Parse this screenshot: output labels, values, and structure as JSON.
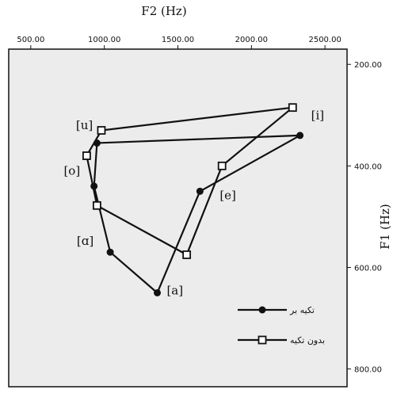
{
  "chart_data": {
    "type": "scatter",
    "xlabel": "F2 (Hz)",
    "ylabel": "F1 (Hz)",
    "xlim": [
      350,
      2650
    ],
    "ylim": [
      170,
      835
    ],
    "x_axis_position": "top",
    "y_axis_position": "right",
    "x_reversed": false,
    "y_reversed": true,
    "x_ticks": [
      500,
      1000,
      1500,
      2000,
      2500
    ],
    "x_tick_labels": [
      "500.00",
      "1000.00",
      "1500.00",
      "2000.00",
      "2500.00"
    ],
    "y_ticks": [
      200,
      400,
      600,
      800
    ],
    "y_tick_labels": [
      "200.00",
      "400.00",
      "600.00",
      "800.00"
    ],
    "grid": false,
    "background": "#ececec",
    "legend_position": "bottom-right",
    "series": [
      {
        "name": "تکیه بر",
        "marker": "filled-circle",
        "color": "#111111",
        "points": [
          {
            "x": 2330,
            "y": 340
          },
          {
            "x": 950,
            "y": 355
          },
          {
            "x": 930,
            "y": 440
          },
          {
            "x": 1040,
            "y": 570
          },
          {
            "x": 1360,
            "y": 650
          },
          {
            "x": 1650,
            "y": 450
          },
          {
            "x": 2330,
            "y": 340
          }
        ]
      },
      {
        "name": "بدون تکیه",
        "marker": "open-square",
        "color": "#111111",
        "points": [
          {
            "x": 2280,
            "y": 285
          },
          {
            "x": 980,
            "y": 330
          },
          {
            "x": 880,
            "y": 380
          },
          {
            "x": 950,
            "y": 478
          },
          {
            "x": 1560,
            "y": 575
          },
          {
            "x": 1800,
            "y": 400
          },
          {
            "x": 2280,
            "y": 285
          }
        ]
      }
    ],
    "annotations": [
      {
        "text": "[i]",
        "x": 2450,
        "y": 300
      },
      {
        "text": "[u]",
        "x": 865,
        "y": 320
      },
      {
        "text": "[o]",
        "x": 780,
        "y": 410
      },
      {
        "text": "[e]",
        "x": 1840,
        "y": 458
      },
      {
        "text": "[ɑ]",
        "x": 870,
        "y": 548
      },
      {
        "text": "[a]",
        "x": 1480,
        "y": 645
      }
    ]
  }
}
